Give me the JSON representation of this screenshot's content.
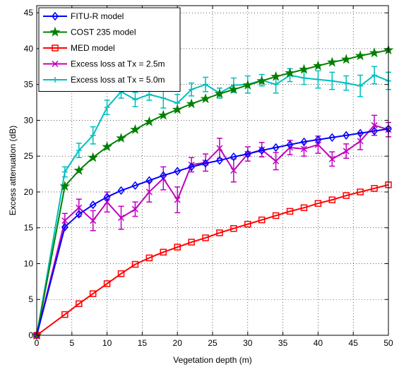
{
  "chart_data": {
    "type": "line",
    "xlabel": "Vegetation depth (m)",
    "ylabel": "Excess attenuation (dB)",
    "xlim": [
      0,
      50
    ],
    "ylim": [
      0,
      46
    ],
    "xticks": [
      0,
      5,
      10,
      15,
      20,
      25,
      30,
      35,
      40,
      45,
      50
    ],
    "yticks": [
      0,
      5,
      10,
      15,
      20,
      25,
      30,
      35,
      40,
      45
    ],
    "grid": true,
    "legend_position": "top-left",
    "series": [
      {
        "name": "FITU-R model",
        "color": "#0000ff",
        "marker": "diamond",
        "x": [
          0,
          4,
          6,
          8,
          10,
          12,
          14,
          16,
          18,
          20,
          22,
          24,
          26,
          28,
          30,
          32,
          34,
          36,
          38,
          40,
          42,
          44,
          46,
          48,
          50
        ],
        "y": [
          0,
          15.1,
          16.9,
          18.2,
          19.3,
          20.2,
          20.9,
          21.6,
          22.3,
          22.9,
          23.5,
          24.0,
          24.4,
          24.9,
          25.3,
          25.8,
          26.2,
          26.6,
          27.0,
          27.3,
          27.6,
          27.9,
          28.2,
          28.5,
          28.8
        ]
      },
      {
        "name": "COST 235 model",
        "color": "#008000",
        "marker": "star",
        "x": [
          0,
          4,
          6,
          8,
          10,
          12,
          14,
          16,
          18,
          20,
          22,
          24,
          26,
          28,
          30,
          32,
          34,
          36,
          38,
          40,
          42,
          44,
          46,
          48,
          50
        ],
        "y": [
          0,
          20.8,
          23.0,
          24.8,
          26.3,
          27.5,
          28.7,
          29.8,
          30.7,
          31.5,
          32.3,
          33.0,
          33.7,
          34.3,
          34.9,
          35.5,
          36.1,
          36.6,
          37.1,
          37.6,
          38.1,
          38.5,
          39.0,
          39.4,
          39.8
        ]
      },
      {
        "name": "MED model",
        "color": "#ff0000",
        "marker": "square",
        "x": [
          0,
          4,
          6,
          8,
          10,
          12,
          14,
          16,
          18,
          20,
          22,
          24,
          26,
          28,
          30,
          32,
          34,
          36,
          38,
          40,
          42,
          44,
          46,
          48,
          50
        ],
        "y": [
          0,
          2.9,
          4.4,
          5.8,
          7.2,
          8.6,
          9.9,
          10.8,
          11.6,
          12.3,
          13.0,
          13.6,
          14.3,
          14.9,
          15.5,
          16.1,
          16.7,
          17.3,
          17.8,
          18.4,
          18.9,
          19.5,
          20.0,
          20.5,
          21.0
        ]
      },
      {
        "name": "Excess loss at Tx = 2.5m",
        "color": "#bf00bf",
        "marker": "x",
        "x": [
          0,
          4,
          6,
          8,
          10,
          12,
          14,
          16,
          18,
          20,
          22,
          24,
          26,
          28,
          30,
          32,
          34,
          36,
          38,
          40,
          42,
          44,
          46,
          48,
          50
        ],
        "y": [
          0,
          16.0,
          17.8,
          16.0,
          18.6,
          16.4,
          17.6,
          20.0,
          21.9,
          18.9,
          23.8,
          24.1,
          26.1,
          23.0,
          25.3,
          25.9,
          24.3,
          26.2,
          26.0,
          26.6,
          24.6,
          25.7,
          27.1,
          29.3,
          28.7
        ],
        "err": [
          0,
          1.0,
          1.2,
          1.4,
          1.4,
          1.6,
          1.0,
          1.4,
          1.6,
          1.8,
          1.0,
          1.2,
          1.4,
          1.6,
          1.0,
          1.0,
          1.2,
          1.0,
          1.0,
          1.2,
          1.0,
          1.0,
          1.2,
          1.4,
          1.0
        ]
      },
      {
        "name": "Excess loss at Tx = 5.0m",
        "color": "#00bfbf",
        "marker": "plus",
        "x": [
          0,
          4,
          6,
          8,
          10,
          12,
          14,
          16,
          18,
          20,
          22,
          24,
          26,
          28,
          30,
          32,
          34,
          36,
          38,
          40,
          42,
          44,
          46,
          48,
          50
        ],
        "y": [
          0,
          22.8,
          25.8,
          27.9,
          31.8,
          34.0,
          32.9,
          33.6,
          33.1,
          32.4,
          34.3,
          35.0,
          33.8,
          34.9,
          35.0,
          35.6,
          35.0,
          36.3,
          35.9,
          35.7,
          35.5,
          35.2,
          34.8,
          36.3,
          35.5
        ],
        "err": [
          0,
          0.7,
          1.0,
          1.2,
          1.0,
          0.9,
          1.0,
          0.8,
          1.4,
          1.2,
          0.9,
          1.0,
          0.7,
          1.0,
          1.2,
          0.8,
          1.2,
          0.9,
          0.9,
          1.2,
          1.2,
          1.0,
          1.5,
          1.2,
          1.2
        ]
      }
    ]
  }
}
